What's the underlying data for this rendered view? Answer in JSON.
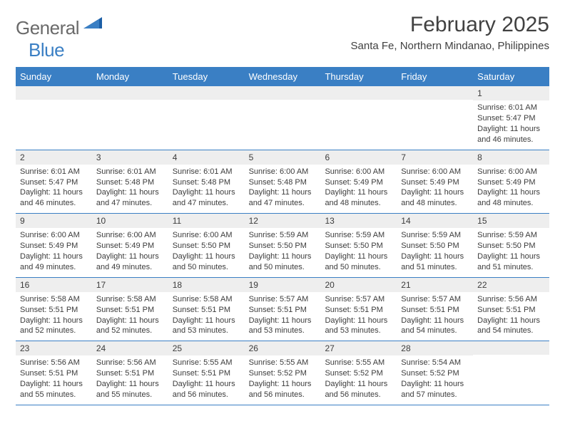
{
  "logo": {
    "main": "General",
    "blue": "Blue"
  },
  "title": "February 2025",
  "location": "Santa Fe, Northern Mindanao, Philippines",
  "header_color": "#3a7fc4",
  "daynum_bg": "#eeeeee",
  "weekdays": [
    "Sunday",
    "Monday",
    "Tuesday",
    "Wednesday",
    "Thursday",
    "Friday",
    "Saturday"
  ],
  "weeks": [
    [
      {
        "day": "",
        "lines": []
      },
      {
        "day": "",
        "lines": []
      },
      {
        "day": "",
        "lines": []
      },
      {
        "day": "",
        "lines": []
      },
      {
        "day": "",
        "lines": []
      },
      {
        "day": "",
        "lines": []
      },
      {
        "day": "1",
        "lines": [
          "Sunrise: 6:01 AM",
          "Sunset: 5:47 PM",
          "Daylight: 11 hours and 46 minutes."
        ]
      }
    ],
    [
      {
        "day": "2",
        "lines": [
          "Sunrise: 6:01 AM",
          "Sunset: 5:47 PM",
          "Daylight: 11 hours and 46 minutes."
        ]
      },
      {
        "day": "3",
        "lines": [
          "Sunrise: 6:01 AM",
          "Sunset: 5:48 PM",
          "Daylight: 11 hours and 47 minutes."
        ]
      },
      {
        "day": "4",
        "lines": [
          "Sunrise: 6:01 AM",
          "Sunset: 5:48 PM",
          "Daylight: 11 hours and 47 minutes."
        ]
      },
      {
        "day": "5",
        "lines": [
          "Sunrise: 6:00 AM",
          "Sunset: 5:48 PM",
          "Daylight: 11 hours and 47 minutes."
        ]
      },
      {
        "day": "6",
        "lines": [
          "Sunrise: 6:00 AM",
          "Sunset: 5:49 PM",
          "Daylight: 11 hours and 48 minutes."
        ]
      },
      {
        "day": "7",
        "lines": [
          "Sunrise: 6:00 AM",
          "Sunset: 5:49 PM",
          "Daylight: 11 hours and 48 minutes."
        ]
      },
      {
        "day": "8",
        "lines": [
          "Sunrise: 6:00 AM",
          "Sunset: 5:49 PM",
          "Daylight: 11 hours and 48 minutes."
        ]
      }
    ],
    [
      {
        "day": "9",
        "lines": [
          "Sunrise: 6:00 AM",
          "Sunset: 5:49 PM",
          "Daylight: 11 hours and 49 minutes."
        ]
      },
      {
        "day": "10",
        "lines": [
          "Sunrise: 6:00 AM",
          "Sunset: 5:49 PM",
          "Daylight: 11 hours and 49 minutes."
        ]
      },
      {
        "day": "11",
        "lines": [
          "Sunrise: 6:00 AM",
          "Sunset: 5:50 PM",
          "Daylight: 11 hours and 50 minutes."
        ]
      },
      {
        "day": "12",
        "lines": [
          "Sunrise: 5:59 AM",
          "Sunset: 5:50 PM",
          "Daylight: 11 hours and 50 minutes."
        ]
      },
      {
        "day": "13",
        "lines": [
          "Sunrise: 5:59 AM",
          "Sunset: 5:50 PM",
          "Daylight: 11 hours and 50 minutes."
        ]
      },
      {
        "day": "14",
        "lines": [
          "Sunrise: 5:59 AM",
          "Sunset: 5:50 PM",
          "Daylight: 11 hours and 51 minutes."
        ]
      },
      {
        "day": "15",
        "lines": [
          "Sunrise: 5:59 AM",
          "Sunset: 5:50 PM",
          "Daylight: 11 hours and 51 minutes."
        ]
      }
    ],
    [
      {
        "day": "16",
        "lines": [
          "Sunrise: 5:58 AM",
          "Sunset: 5:51 PM",
          "Daylight: 11 hours and 52 minutes."
        ]
      },
      {
        "day": "17",
        "lines": [
          "Sunrise: 5:58 AM",
          "Sunset: 5:51 PM",
          "Daylight: 11 hours and 52 minutes."
        ]
      },
      {
        "day": "18",
        "lines": [
          "Sunrise: 5:58 AM",
          "Sunset: 5:51 PM",
          "Daylight: 11 hours and 53 minutes."
        ]
      },
      {
        "day": "19",
        "lines": [
          "Sunrise: 5:57 AM",
          "Sunset: 5:51 PM",
          "Daylight: 11 hours and 53 minutes."
        ]
      },
      {
        "day": "20",
        "lines": [
          "Sunrise: 5:57 AM",
          "Sunset: 5:51 PM",
          "Daylight: 11 hours and 53 minutes."
        ]
      },
      {
        "day": "21",
        "lines": [
          "Sunrise: 5:57 AM",
          "Sunset: 5:51 PM",
          "Daylight: 11 hours and 54 minutes."
        ]
      },
      {
        "day": "22",
        "lines": [
          "Sunrise: 5:56 AM",
          "Sunset: 5:51 PM",
          "Daylight: 11 hours and 54 minutes."
        ]
      }
    ],
    [
      {
        "day": "23",
        "lines": [
          "Sunrise: 5:56 AM",
          "Sunset: 5:51 PM",
          "Daylight: 11 hours and 55 minutes."
        ]
      },
      {
        "day": "24",
        "lines": [
          "Sunrise: 5:56 AM",
          "Sunset: 5:51 PM",
          "Daylight: 11 hours and 55 minutes."
        ]
      },
      {
        "day": "25",
        "lines": [
          "Sunrise: 5:55 AM",
          "Sunset: 5:51 PM",
          "Daylight: 11 hours and 56 minutes."
        ]
      },
      {
        "day": "26",
        "lines": [
          "Sunrise: 5:55 AM",
          "Sunset: 5:52 PM",
          "Daylight: 11 hours and 56 minutes."
        ]
      },
      {
        "day": "27",
        "lines": [
          "Sunrise: 5:55 AM",
          "Sunset: 5:52 PM",
          "Daylight: 11 hours and 56 minutes."
        ]
      },
      {
        "day": "28",
        "lines": [
          "Sunrise: 5:54 AM",
          "Sunset: 5:52 PM",
          "Daylight: 11 hours and 57 minutes."
        ]
      },
      {
        "day": "",
        "lines": []
      }
    ]
  ]
}
